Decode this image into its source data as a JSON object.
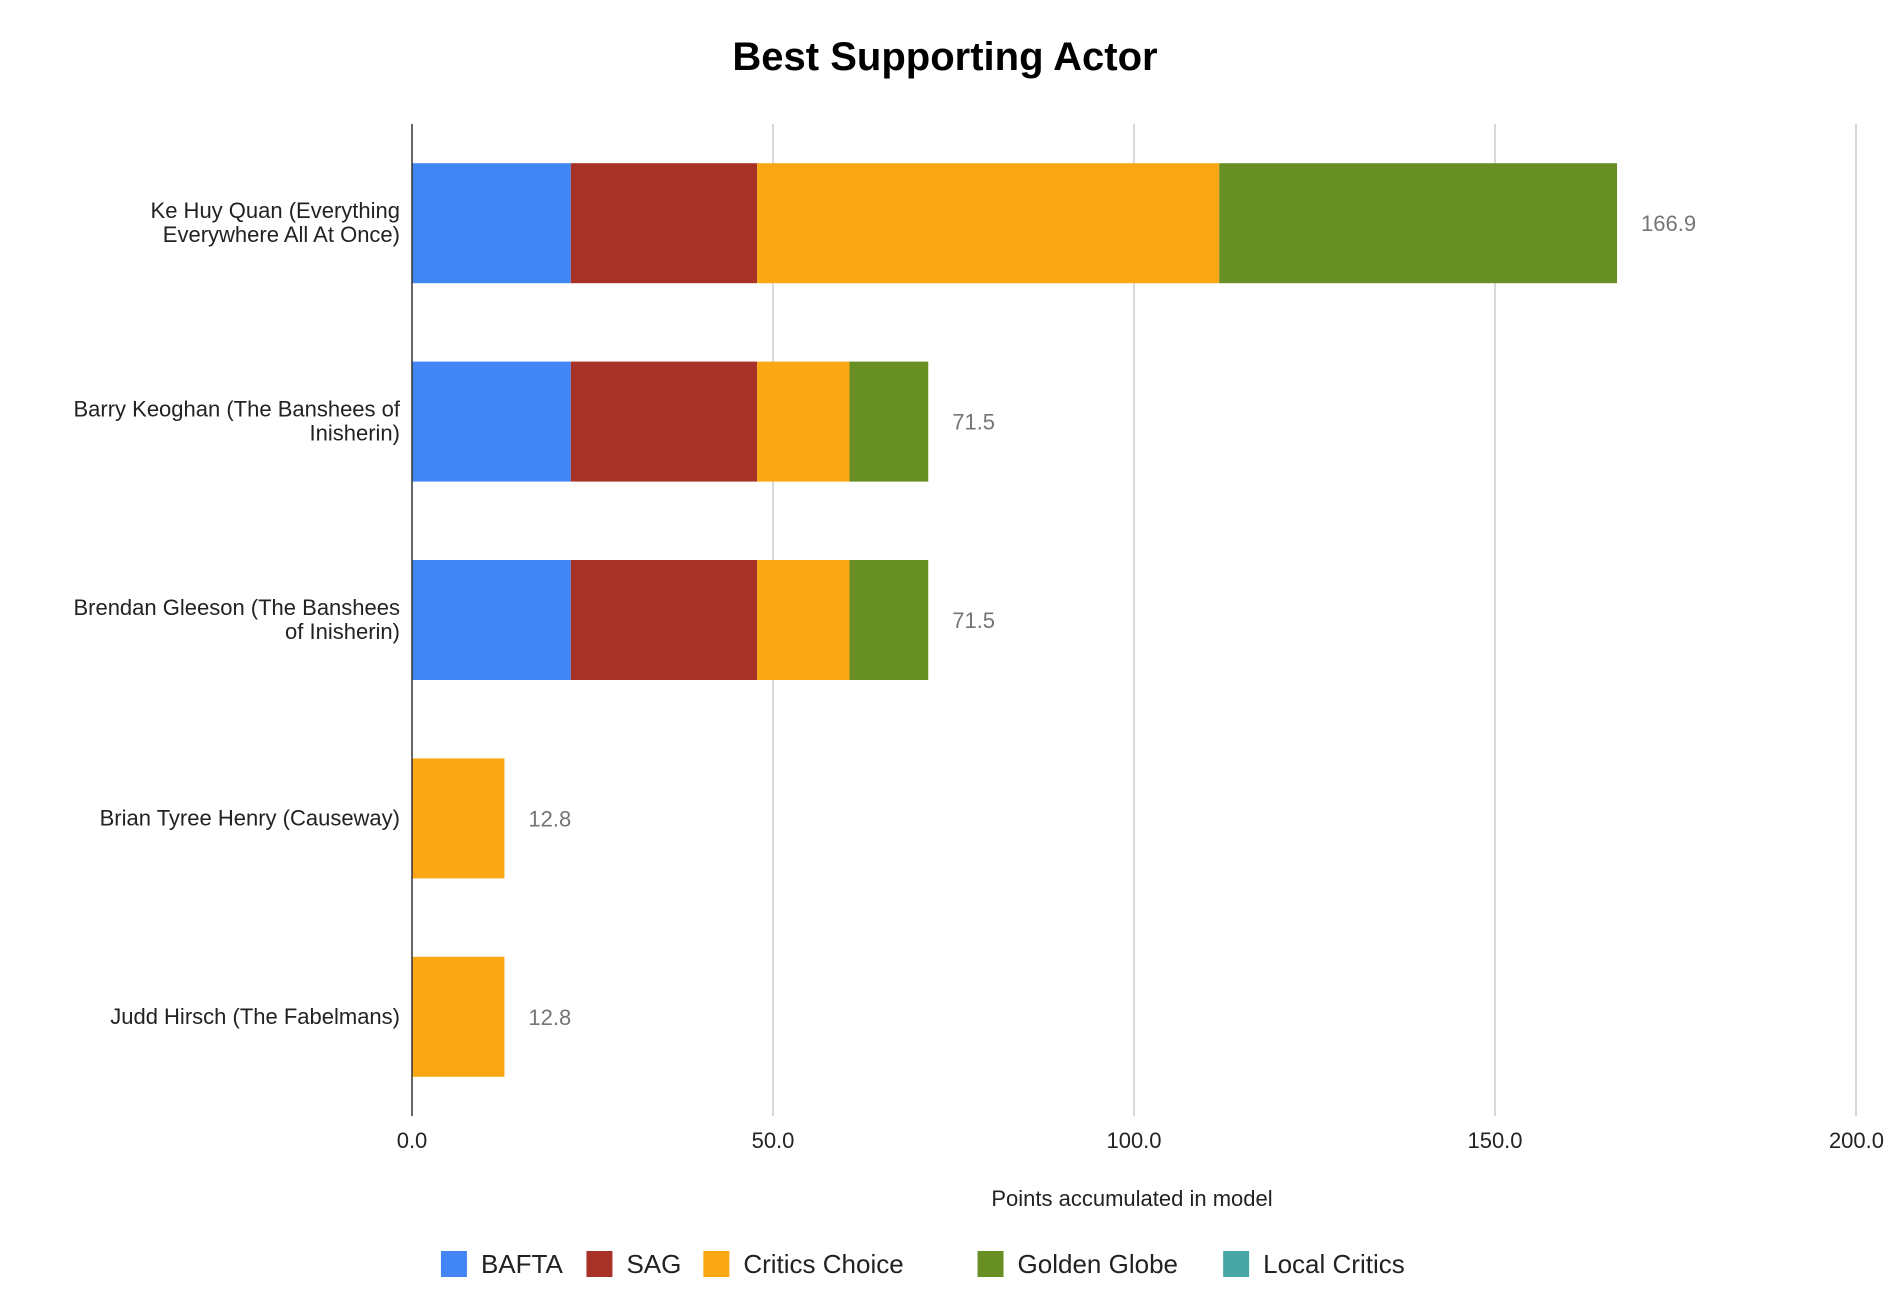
{
  "chart_data": {
    "type": "bar",
    "orientation": "horizontal",
    "stacked": true,
    "title": "Best Supporting Actor",
    "xlabel": "Points accumulated in model",
    "ylabel": "",
    "xlim": [
      0,
      200
    ],
    "xticks": [
      "0.0",
      "50.0",
      "100.0",
      "150.0",
      "200.0"
    ],
    "grid": true,
    "legend_position": "bottom",
    "categories": [
      [
        "Ke Huy Quan (Everything",
        "Everywhere All At Once)"
      ],
      [
        "Barry Keoghan (The Banshees of",
        "Inisherin)"
      ],
      [
        "Brendan Gleeson (The Banshees",
        "of Inisherin)"
      ],
      [
        "Brian Tyree Henry (Causeway)"
      ],
      [
        "Judd Hirsch (The Fabelmans)"
      ]
    ],
    "series": [
      {
        "name": "BAFTA",
        "color": "#4285f4",
        "values": [
          22.0,
          22.0,
          22.0,
          0,
          0
        ]
      },
      {
        "name": "SAG",
        "color": "#a83227",
        "values": [
          25.8,
          25.8,
          25.8,
          0,
          0
        ]
      },
      {
        "name": "Critics Choice",
        "color": "#f9a813",
        "values": [
          64.0,
          12.8,
          12.8,
          12.8,
          12.8
        ]
      },
      {
        "name": "Golden Globe",
        "color": "#688f24",
        "values": [
          55.1,
          10.9,
          10.9,
          0,
          0
        ]
      },
      {
        "name": "Local Critics",
        "color": "#46a7a5",
        "values": [
          0,
          0,
          0,
          0,
          0
        ]
      }
    ],
    "totals": [
      "166.9",
      "71.5",
      "71.5",
      "12.8",
      "12.8"
    ]
  }
}
